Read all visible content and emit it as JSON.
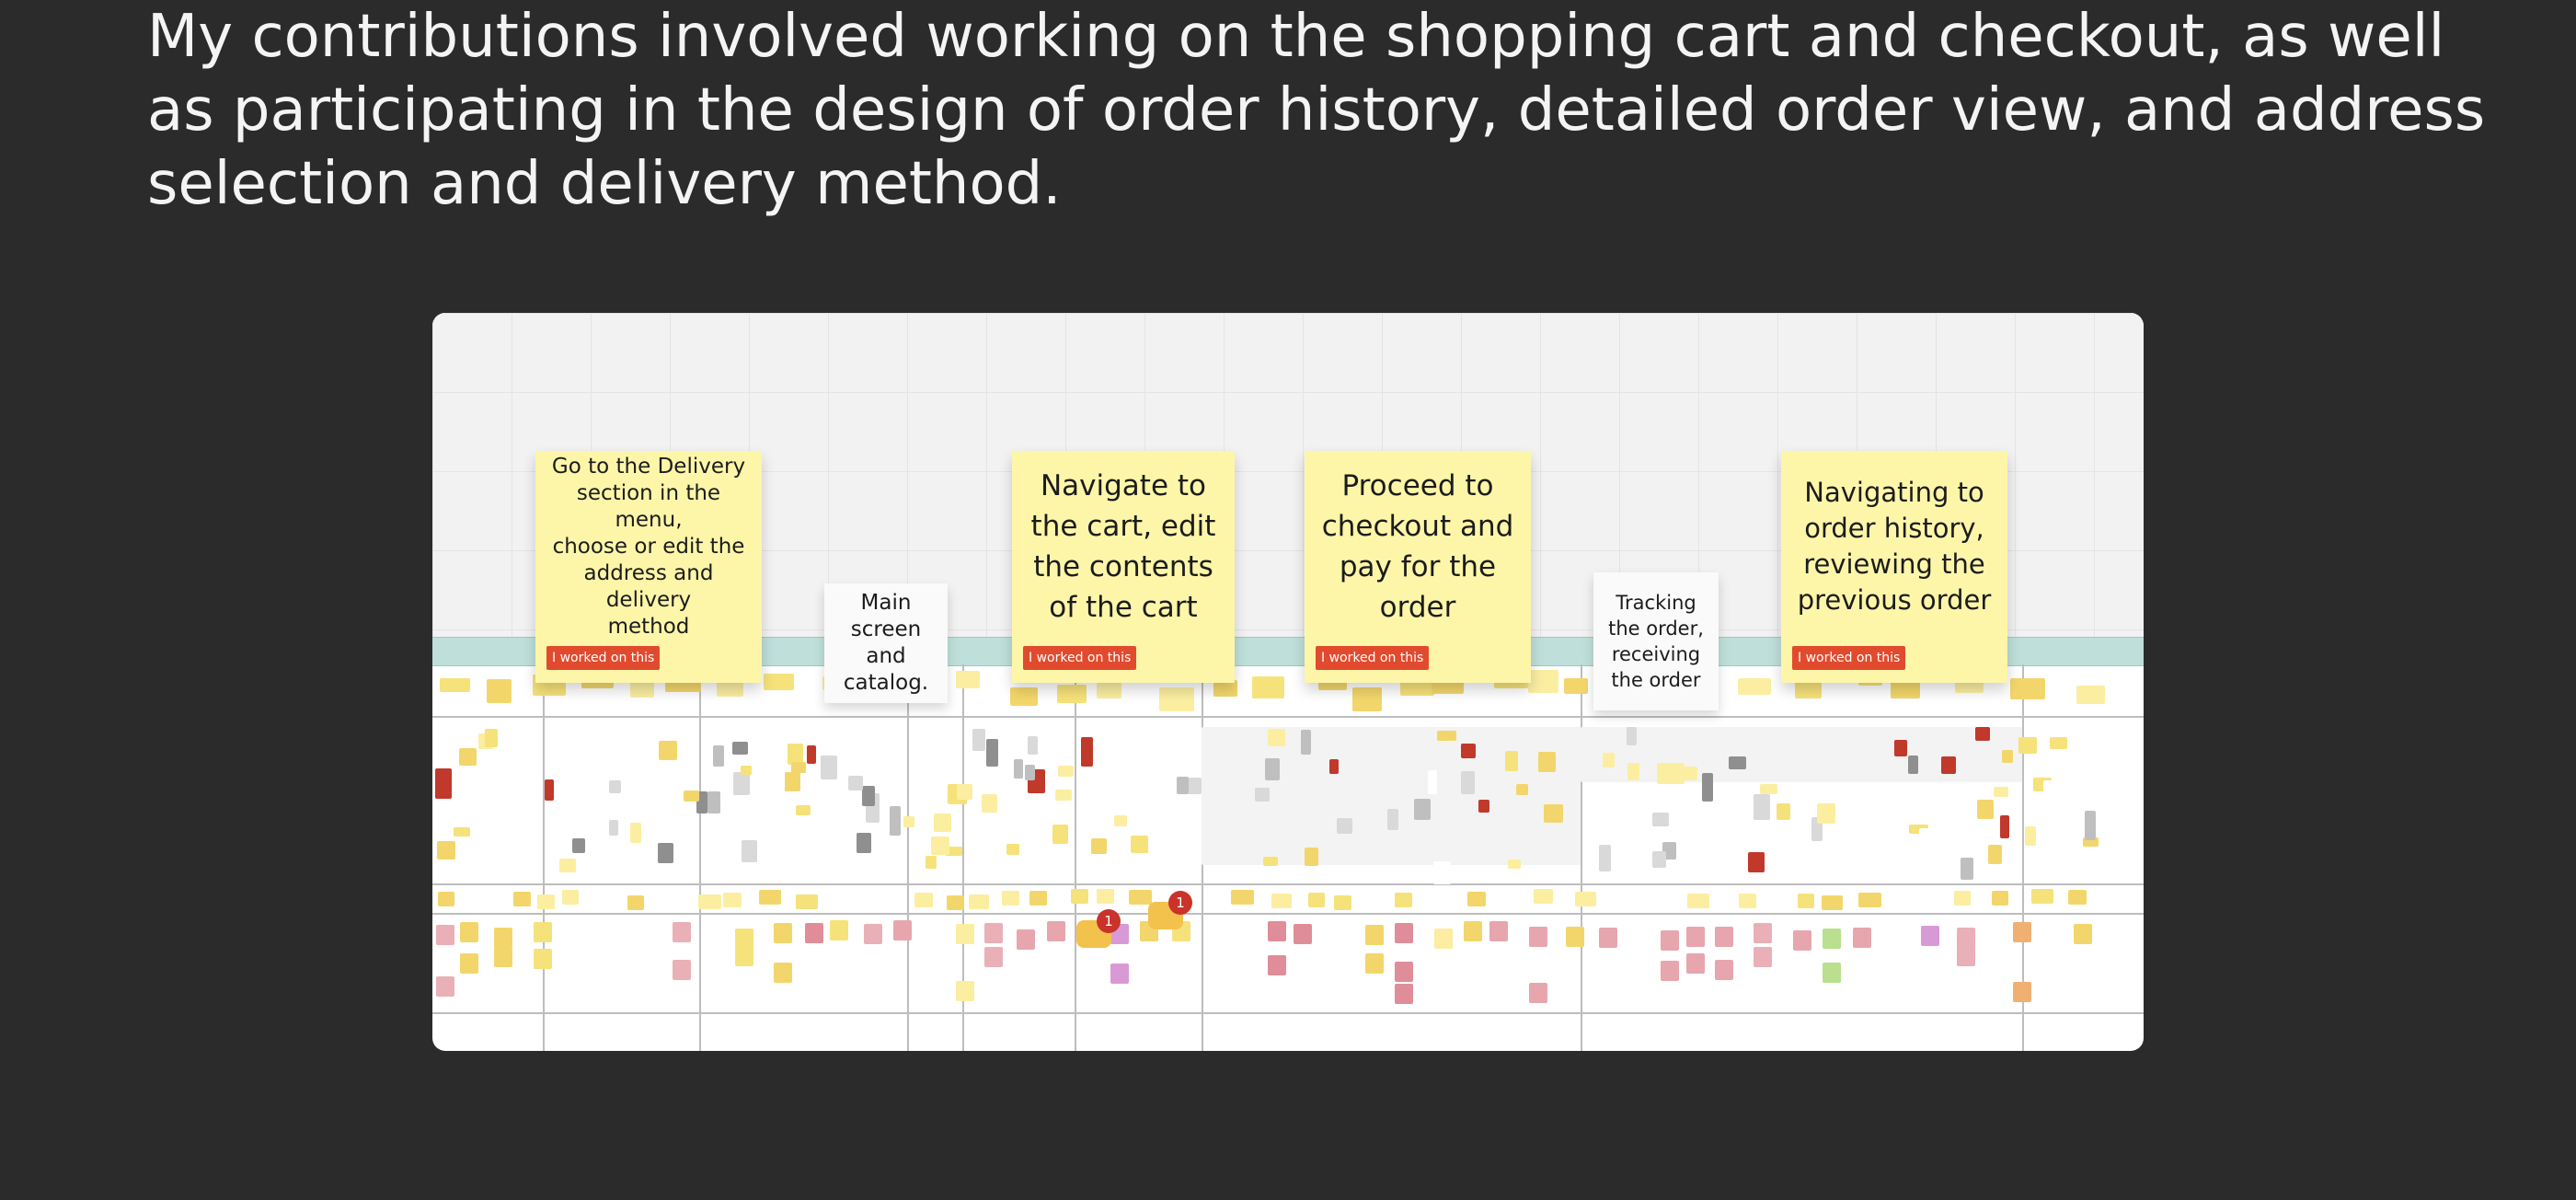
{
  "headline": "My contributions involved working on the shopping cart and checkout, as well as participating in the design of order history, detailed order view, and address selection and delivery method.",
  "notes": [
    {
      "text": "Go to the Delivery\nsection in the menu,\nchoose or edit the\naddress and delivery\nmethod",
      "badge": "I worked on this"
    },
    {
      "text": "Navigate to\nthe cart, edit\nthe contents\nof the cart",
      "badge": "I worked on this"
    },
    {
      "text": "Proceed to\ncheckout and\npay for the\norder",
      "badge": "I worked on this"
    },
    {
      "text": "Navigating to\norder history,\nreviewing the\nprevious order",
      "badge": "I worked on this"
    }
  ],
  "cards": [
    {
      "text": "Main\nscreen and\ncatalog."
    },
    {
      "text": "Tracking\nthe order,\nreceiving\nthe order"
    }
  ],
  "comments": [
    {
      "count": "1"
    },
    {
      "count": "1"
    }
  ],
  "colors": {
    "background": "#2b2b2b",
    "sticky": "#fdf6a9",
    "badge": "#e14a2d",
    "lane": "#bfe0da"
  }
}
